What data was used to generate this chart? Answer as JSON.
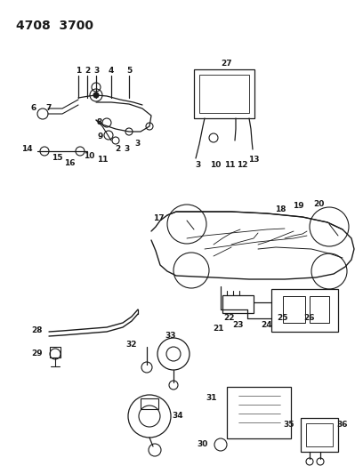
{
  "title_code": "4708  3700",
  "bg_color": "#ffffff",
  "line_color": "#1a1a1a",
  "fig_width": 4.08,
  "fig_height": 5.33,
  "dpi": 100,
  "title_fontsize": 10,
  "label_fontsize": 6.5
}
